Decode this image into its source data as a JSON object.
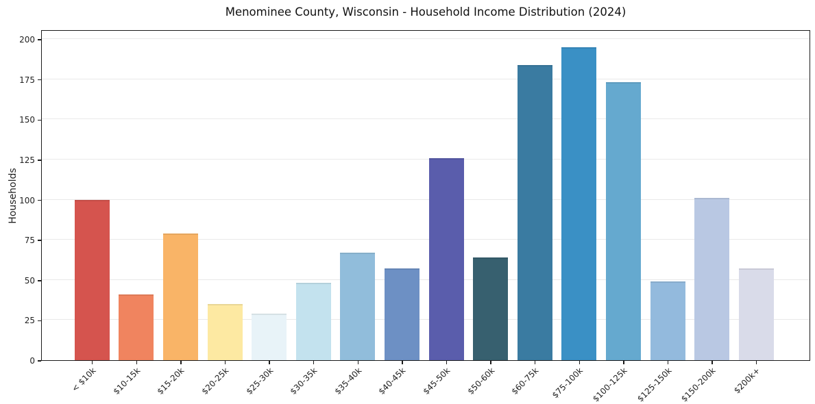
{
  "chart_data": {
    "type": "bar",
    "title": "Menominee County, Wisconsin - Household Income Distribution (2024)",
    "xlabel": "",
    "ylabel": "Households",
    "categories": [
      "< $10k",
      "$10-15k",
      "$15-20k",
      "$20-25k",
      "$25-30k",
      "$30-35k",
      "$35-40k",
      "$40-45k",
      "$45-50k",
      "$50-60k",
      "$60-75k",
      "$75-100k",
      "$100-125k",
      "$125-150k",
      "$150-200k",
      "$200k+"
    ],
    "values": [
      100,
      41,
      79,
      35,
      29,
      48,
      67,
      57,
      126,
      64,
      184,
      195,
      173,
      49,
      101,
      57
    ],
    "colors": [
      "#d5544e",
      "#f0845f",
      "#f9b467",
      "#fde9a2",
      "#e8f3f8",
      "#c3e2ee",
      "#91bddb",
      "#6d90c4",
      "#5a5dac",
      "#37606f",
      "#3a7ba1",
      "#3a90c5",
      "#65a9cf",
      "#93badd",
      "#b9c8e3",
      "#d9dbe9"
    ],
    "ylim": [
      0,
      206
    ],
    "yticks": [
      0,
      25,
      50,
      75,
      100,
      125,
      150,
      175,
      200
    ],
    "x_tick_rotation_degrees": 45,
    "grid": "horizontal",
    "legend": "none",
    "plot_background": "#ffffff",
    "grid_color": "#e9e9e9",
    "spine_color": "#1a1a1a",
    "text_color": "#1f1f1f"
  }
}
